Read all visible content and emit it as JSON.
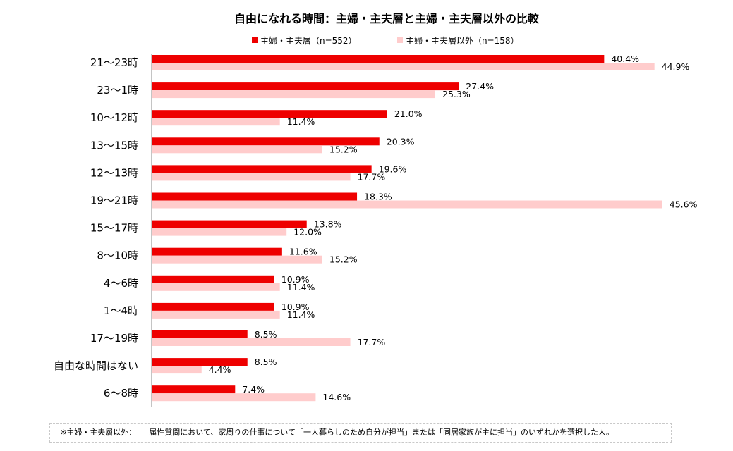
{
  "chart_data": {
    "type": "bar",
    "orientation": "horizontal",
    "title": "自由になれる時間：主婦・主夫層と主婦・主夫層以外の比較",
    "categories": [
      "21〜23時",
      "23〜1時",
      "10〜12時",
      "13〜15時",
      "12〜13時",
      "19〜21時",
      "15〜17時",
      "8〜10時",
      "4〜6時",
      "1〜4時",
      "17〜19時",
      "自由な時間はない",
      "6〜8時"
    ],
    "series": [
      {
        "name": "主婦・主夫層（n=552）",
        "color": "#ee0000",
        "values": [
          40.4,
          27.4,
          21.0,
          20.3,
          19.6,
          18.3,
          13.8,
          11.6,
          10.9,
          10.9,
          8.5,
          8.5,
          7.4
        ],
        "labels": [
          "40.4%",
          "27.4%",
          "21.0%",
          "20.3%",
          "19.6%",
          "18.3%",
          "13.8%",
          "11.6%",
          "10.9%",
          "10.9%",
          "8.5%",
          "8.5%",
          "7.4%"
        ]
      },
      {
        "name": "主婦・主夫層以外（n=158）",
        "color": "#ffcccc",
        "values": [
          44.9,
          25.3,
          11.4,
          15.2,
          17.7,
          45.6,
          12.0,
          15.2,
          11.4,
          11.4,
          17.7,
          4.4,
          14.6
        ],
        "labels": [
          "44.9%",
          "25.3%",
          "11.4%",
          "15.2%",
          "17.7%",
          "45.6%",
          "12.0%",
          "15.2%",
          "11.4%",
          "11.4%",
          "17.7%",
          "4.4%",
          "14.6%"
        ]
      }
    ],
    "xlim": [
      0,
      46
    ],
    "grid": false,
    "legend_position": "top"
  },
  "footnote": {
    "label": "※主婦・主夫層以外：",
    "text": "属性質問において、家周りの仕事について「一人暮らしのため自分が担当」または「同居家族が主に担当」のいずれかを選択した人。"
  }
}
